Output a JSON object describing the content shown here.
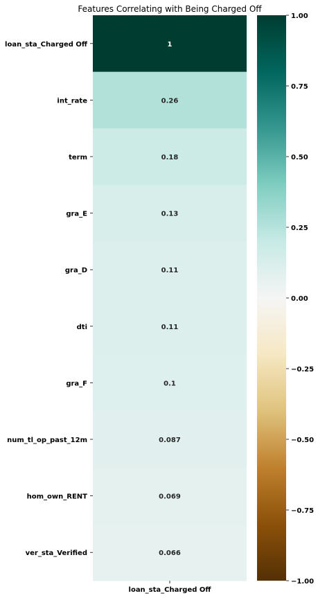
{
  "chart_data": {
    "type": "heatmap",
    "title": "Features Correlating with Being Charged Off",
    "columns": [
      "loan_sta_Charged Off"
    ],
    "rows": [
      "loan_sta_Charged Off",
      "int_rate",
      "term",
      "gra_E",
      "gra_D",
      "dti",
      "gra_F",
      "num_tl_op_past_12m",
      "hom_own_RENT",
      "ver_sta_Verified"
    ],
    "values": [
      1,
      0.26,
      0.18,
      0.13,
      0.11,
      0.11,
      0.1,
      0.087,
      0.069,
      0.066
    ],
    "value_labels": [
      "1",
      "0.26",
      "0.18",
      "0.13",
      "0.11",
      "0.11",
      "0.1",
      "0.087",
      "0.069",
      "0.066"
    ],
    "colorbar": {
      "vmin": -1,
      "vmax": 1,
      "colormap": "BrBG",
      "ticks": [
        1,
        0.75,
        0.5,
        0.25,
        0,
        -0.25,
        -0.5,
        -0.75,
        -1
      ],
      "tick_labels": [
        "1.00",
        "0.75",
        "0.50",
        "0.25",
        "0.00",
        "−0.25",
        "−0.50",
        "−0.75",
        "−1.00"
      ]
    }
  }
}
